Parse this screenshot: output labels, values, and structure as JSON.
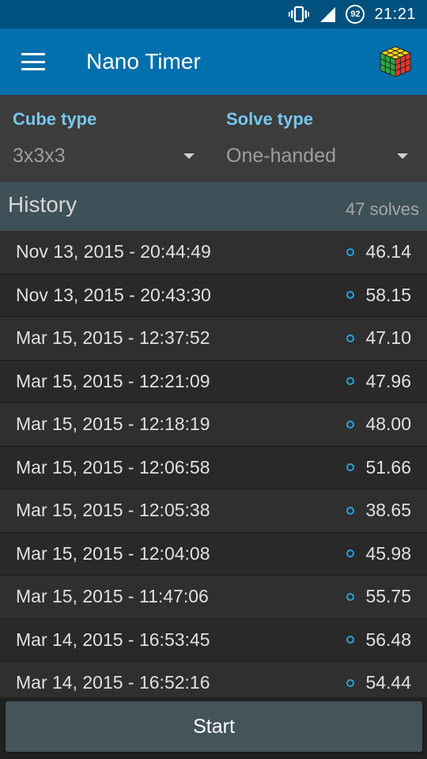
{
  "status_bar": {
    "time": "21:21",
    "battery_level": "92",
    "icons": [
      "vibrate-icon",
      "signal-icon",
      "battery-icon"
    ]
  },
  "app_bar": {
    "title": "Nano Timer",
    "menu_icon": "menu-icon",
    "logo_icon": "rubiks-cube-icon"
  },
  "selectors": {
    "cube_type": {
      "label": "Cube type",
      "value": "3x3x3"
    },
    "solve_type": {
      "label": "Solve type",
      "value": "One-handed"
    }
  },
  "history": {
    "title": "History",
    "count": "47 solves",
    "rows": [
      {
        "date": "Nov 13, 2015 - 20:44:49",
        "time": "46.14"
      },
      {
        "date": "Nov 13, 2015 - 20:43:30",
        "time": "58.15"
      },
      {
        "date": "Mar 15, 2015 - 12:37:52",
        "time": "47.10"
      },
      {
        "date": "Mar 15, 2015 - 12:21:09",
        "time": "47.96"
      },
      {
        "date": "Mar 15, 2015 - 12:18:19",
        "time": "48.00"
      },
      {
        "date": "Mar 15, 2015 - 12:06:58",
        "time": "51.66"
      },
      {
        "date": "Mar 15, 2015 - 12:05:38",
        "time": "38.65"
      },
      {
        "date": "Mar 15, 2015 - 12:04:08",
        "time": "45.98"
      },
      {
        "date": "Mar 15, 2015 - 11:47:06",
        "time": "55.75"
      },
      {
        "date": "Mar 14, 2015 - 16:53:45",
        "time": "56.48"
      },
      {
        "date": "Mar 14, 2015 - 16:52:16",
        "time": "54.44"
      }
    ]
  },
  "start_button": {
    "label": "Start"
  },
  "colors": {
    "status_bar": "#01517f",
    "app_bar": "#0270ac",
    "accent": "#76c7ef",
    "dot": "#29a1db"
  }
}
